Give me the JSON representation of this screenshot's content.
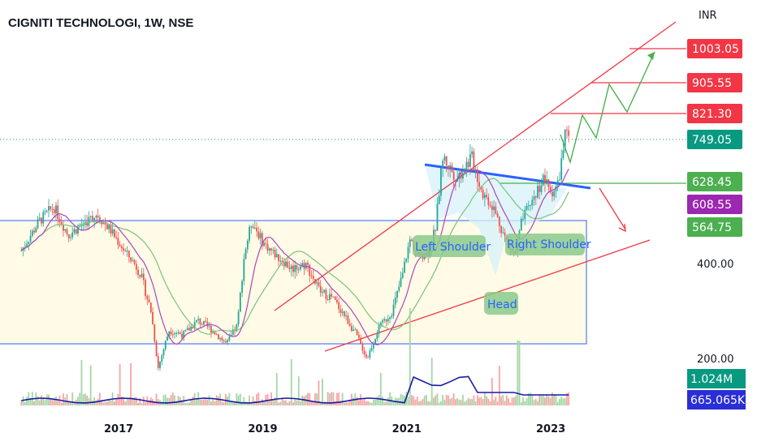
{
  "header": {
    "title": "CIGNITI TECHNOLOGI, 1W, NSE",
    "currency": "INR"
  },
  "colors": {
    "up": "#26a69a",
    "down": "#ef5350",
    "box_fill": "#fffbe6",
    "box_border": "#2962ff",
    "trend_red": "#f23645",
    "neckline": "#2962ff",
    "projection_green": "#4caf50",
    "ma_green": "#81c784",
    "ma_purple": "#ab47bc",
    "volume_line": "#1a1aa6"
  },
  "chart_data": {
    "type": "candlestick",
    "instrument": "CIGNITI TECHNOLOGI",
    "interval": "1W",
    "exchange": "NSE",
    "x_ticks": [
      "2017",
      "2019",
      "2021",
      "2023"
    ],
    "y_ticks": [
      200.0,
      400.0
    ],
    "price_labels": [
      {
        "value": 1003.05,
        "color": "#f23645"
      },
      {
        "value": 905.55,
        "color": "#f23645"
      },
      {
        "value": 821.3,
        "color": "#f23645"
      },
      {
        "value": 749.05,
        "color": "#089981"
      },
      {
        "value": 628.45,
        "color": "#4caf50"
      },
      {
        "value": 608.55,
        "color": "#9c27b0"
      },
      {
        "value": 564.75,
        "color": "#4caf50"
      }
    ],
    "volume_labels": [
      {
        "text": "1.024M",
        "color": "#089981"
      },
      {
        "text": "665.065K",
        "color": "#2a2ed6"
      }
    ],
    "annotations": [
      "Left Shoulder",
      "Head",
      "Right Shoulder"
    ],
    "y_range": [
      120,
      1100
    ],
    "price_path": [
      [
        2015.6,
        420
      ],
      [
        2015.9,
        520
      ],
      [
        2016.1,
        560
      ],
      [
        2016.3,
        480
      ],
      [
        2016.5,
        510
      ],
      [
        2016.7,
        540
      ],
      [
        2016.9,
        490
      ],
      [
        2017.1,
        430
      ],
      [
        2017.3,
        380
      ],
      [
        2017.45,
        300
      ],
      [
        2017.55,
        180
      ],
      [
        2017.7,
        260
      ],
      [
        2017.9,
        250
      ],
      [
        2018.1,
        280
      ],
      [
        2018.3,
        260
      ],
      [
        2018.5,
        230
      ],
      [
        2018.65,
        270
      ],
      [
        2018.75,
        430
      ],
      [
        2018.85,
        520
      ],
      [
        2019.0,
        460
      ],
      [
        2019.2,
        420
      ],
      [
        2019.4,
        390
      ],
      [
        2019.6,
        400
      ],
      [
        2019.8,
        340
      ],
      [
        2019.95,
        330
      ],
      [
        2020.1,
        300
      ],
      [
        2020.3,
        250
      ],
      [
        2020.45,
        200
      ],
      [
        2020.6,
        260
      ],
      [
        2020.8,
        300
      ],
      [
        2020.95,
        380
      ],
      [
        2021.05,
        470
      ],
      [
        2021.15,
        420
      ],
      [
        2021.3,
        430
      ],
      [
        2021.4,
        500
      ],
      [
        2021.5,
        700
      ],
      [
        2021.7,
        640
      ],
      [
        2021.9,
        700
      ],
      [
        2022.05,
        600
      ],
      [
        2022.2,
        560
      ],
      [
        2022.35,
        480
      ],
      [
        2022.5,
        420
      ],
      [
        2022.6,
        520
      ],
      [
        2022.75,
        580
      ],
      [
        2022.9,
        640
      ],
      [
        2023.0,
        600
      ],
      [
        2023.1,
        620
      ],
      [
        2023.2,
        760
      ],
      [
        2023.25,
        749.05
      ]
    ],
    "pattern": "inverse head and shoulders",
    "neckline_level": 628.45
  }
}
